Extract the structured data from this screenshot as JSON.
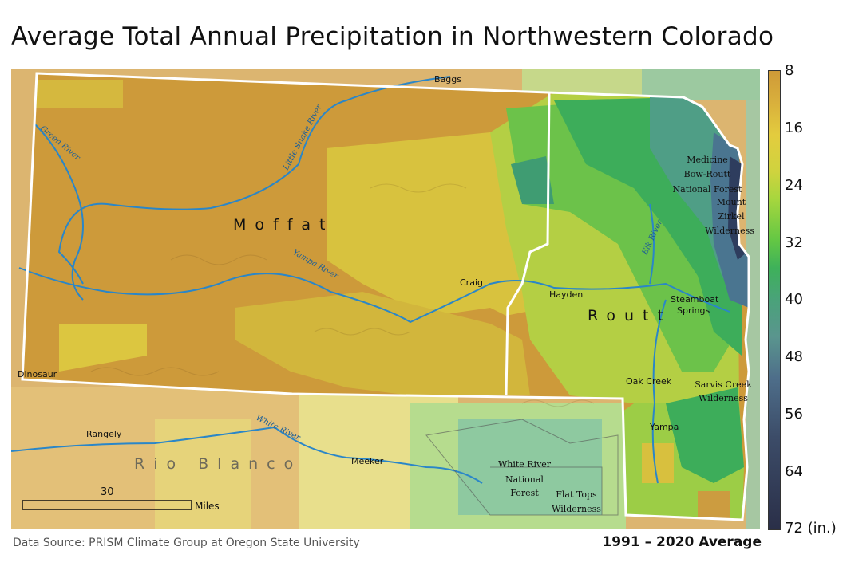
{
  "title": "Average Total Annual Precipitation in Northwestern Colorado",
  "legend": {
    "ticks": [
      "8",
      "16",
      "24",
      "32",
      "40",
      "48",
      "56",
      "64",
      "72 (in.)"
    ],
    "colors": [
      "#cf9a38",
      "#e3cc3e",
      "#a6d63e",
      "#3eb15a",
      "#4aa27a",
      "#5a958e",
      "#4e6e8a",
      "#3c4c68",
      "#2a2f48"
    ]
  },
  "counties": {
    "moffat": "Moffat",
    "routt": "Routt",
    "rio_blanco": "Rio Blanco"
  },
  "towns": {
    "baggs": "Baggs",
    "craig": "Craig",
    "hayden": "Hayden",
    "dinosaur": "Dinosaur",
    "steamboat_1": "Steamboat",
    "steamboat_2": "Springs",
    "oak_creek": "Oak Creek",
    "yampa": "Yampa",
    "rangely": "Rangely",
    "meeker": "Meeker"
  },
  "rivers": {
    "green": "Green River",
    "little_snake": "Little Snake River",
    "yampa": "Yampa River",
    "elk": "Elk River",
    "white": "White River"
  },
  "areas": {
    "medicine_bow": [
      "Medicine",
      "Bow-Routt",
      "National Forest"
    ],
    "mount_zirkel": [
      "Mount",
      "Zirkel",
      "Wilderness"
    ],
    "sarvis": [
      "Sarvis Creek",
      "Wilderness"
    ],
    "white_river_nf": [
      "White River",
      "National",
      "Forest"
    ],
    "flat_tops": [
      "Flat Tops",
      "Wilderness"
    ]
  },
  "scale": {
    "value": "30",
    "unit": "Miles"
  },
  "source": "Data Source: PRISM Climate Group at Oregon State University",
  "period": "1991 – 2020 Average"
}
